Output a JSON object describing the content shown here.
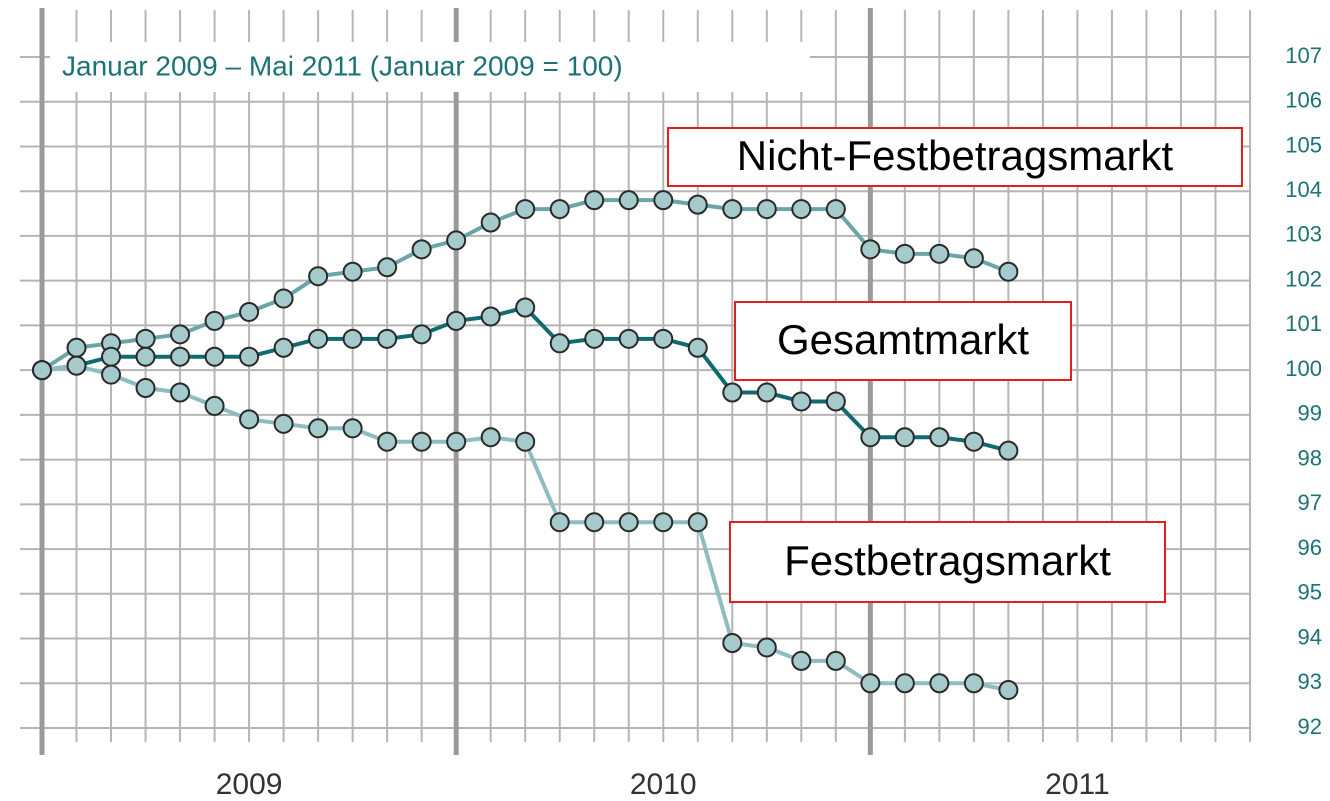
{
  "chart_data": {
    "type": "line",
    "subtitle": "Januar 2009 – Mai 2011 (Januar 2009 = 100)",
    "x": [
      "2009-01",
      "2009-02",
      "2009-03",
      "2009-04",
      "2009-05",
      "2009-06",
      "2009-07",
      "2009-08",
      "2009-09",
      "2009-10",
      "2009-11",
      "2009-12",
      "2010-01",
      "2010-02",
      "2010-03",
      "2010-04",
      "2010-05",
      "2010-06",
      "2010-07",
      "2010-08",
      "2010-09",
      "2010-10",
      "2010-11",
      "2010-12",
      "2011-01",
      "2011-02",
      "2011-03",
      "2011-04",
      "2011-05"
    ],
    "series": [
      {
        "name": "Nicht-Festbetragsmarkt",
        "color": "#6aa5a8",
        "values": [
          100,
          100.5,
          100.6,
          100.7,
          100.8,
          101.1,
          101.3,
          101.6,
          102.1,
          102.2,
          102.3,
          102.7,
          102.9,
          103.3,
          103.6,
          103.6,
          103.8,
          103.8,
          103.8,
          103.7,
          103.6,
          103.6,
          103.6,
          103.6,
          102.7,
          102.6,
          102.6,
          102.5,
          102.2
        ]
      },
      {
        "name": "Gesamtmarkt",
        "color": "#0f6b6f",
        "values": [
          100,
          100.1,
          100.3,
          100.3,
          100.3,
          100.3,
          100.3,
          100.5,
          100.7,
          100.7,
          100.7,
          100.8,
          101.1,
          101.2,
          101.4,
          100.6,
          100.7,
          100.7,
          100.7,
          100.5,
          99.5,
          99.5,
          99.3,
          99.3,
          98.5,
          98.5,
          98.5,
          98.4,
          98.2
        ]
      },
      {
        "name": "Festbetragsmarkt",
        "color": "#8dbdc0",
        "values": [
          100,
          100.1,
          99.9,
          99.6,
          99.5,
          99.2,
          98.9,
          98.8,
          98.7,
          98.7,
          98.4,
          98.4,
          98.4,
          98.5,
          98.4,
          96.6,
          96.6,
          96.6,
          96.6,
          96.6,
          93.9,
          93.8,
          93.5,
          93.5,
          93.0,
          93.0,
          93.0,
          93.0,
          92.85
        ]
      }
    ],
    "xlim": [
      "2009-01",
      "2011-12"
    ],
    "xticks": [
      {
        "value": "2009-07",
        "label": "2009"
      },
      {
        "value": "2010-07",
        "label": "2010"
      },
      {
        "value": "2011-07",
        "label": "2011"
      }
    ],
    "ylim": [
      92,
      107
    ],
    "yticks": [
      92,
      93,
      94,
      95,
      96,
      97,
      98,
      99,
      100,
      101,
      102,
      103,
      104,
      105,
      106,
      107
    ],
    "grid": true
  }
}
